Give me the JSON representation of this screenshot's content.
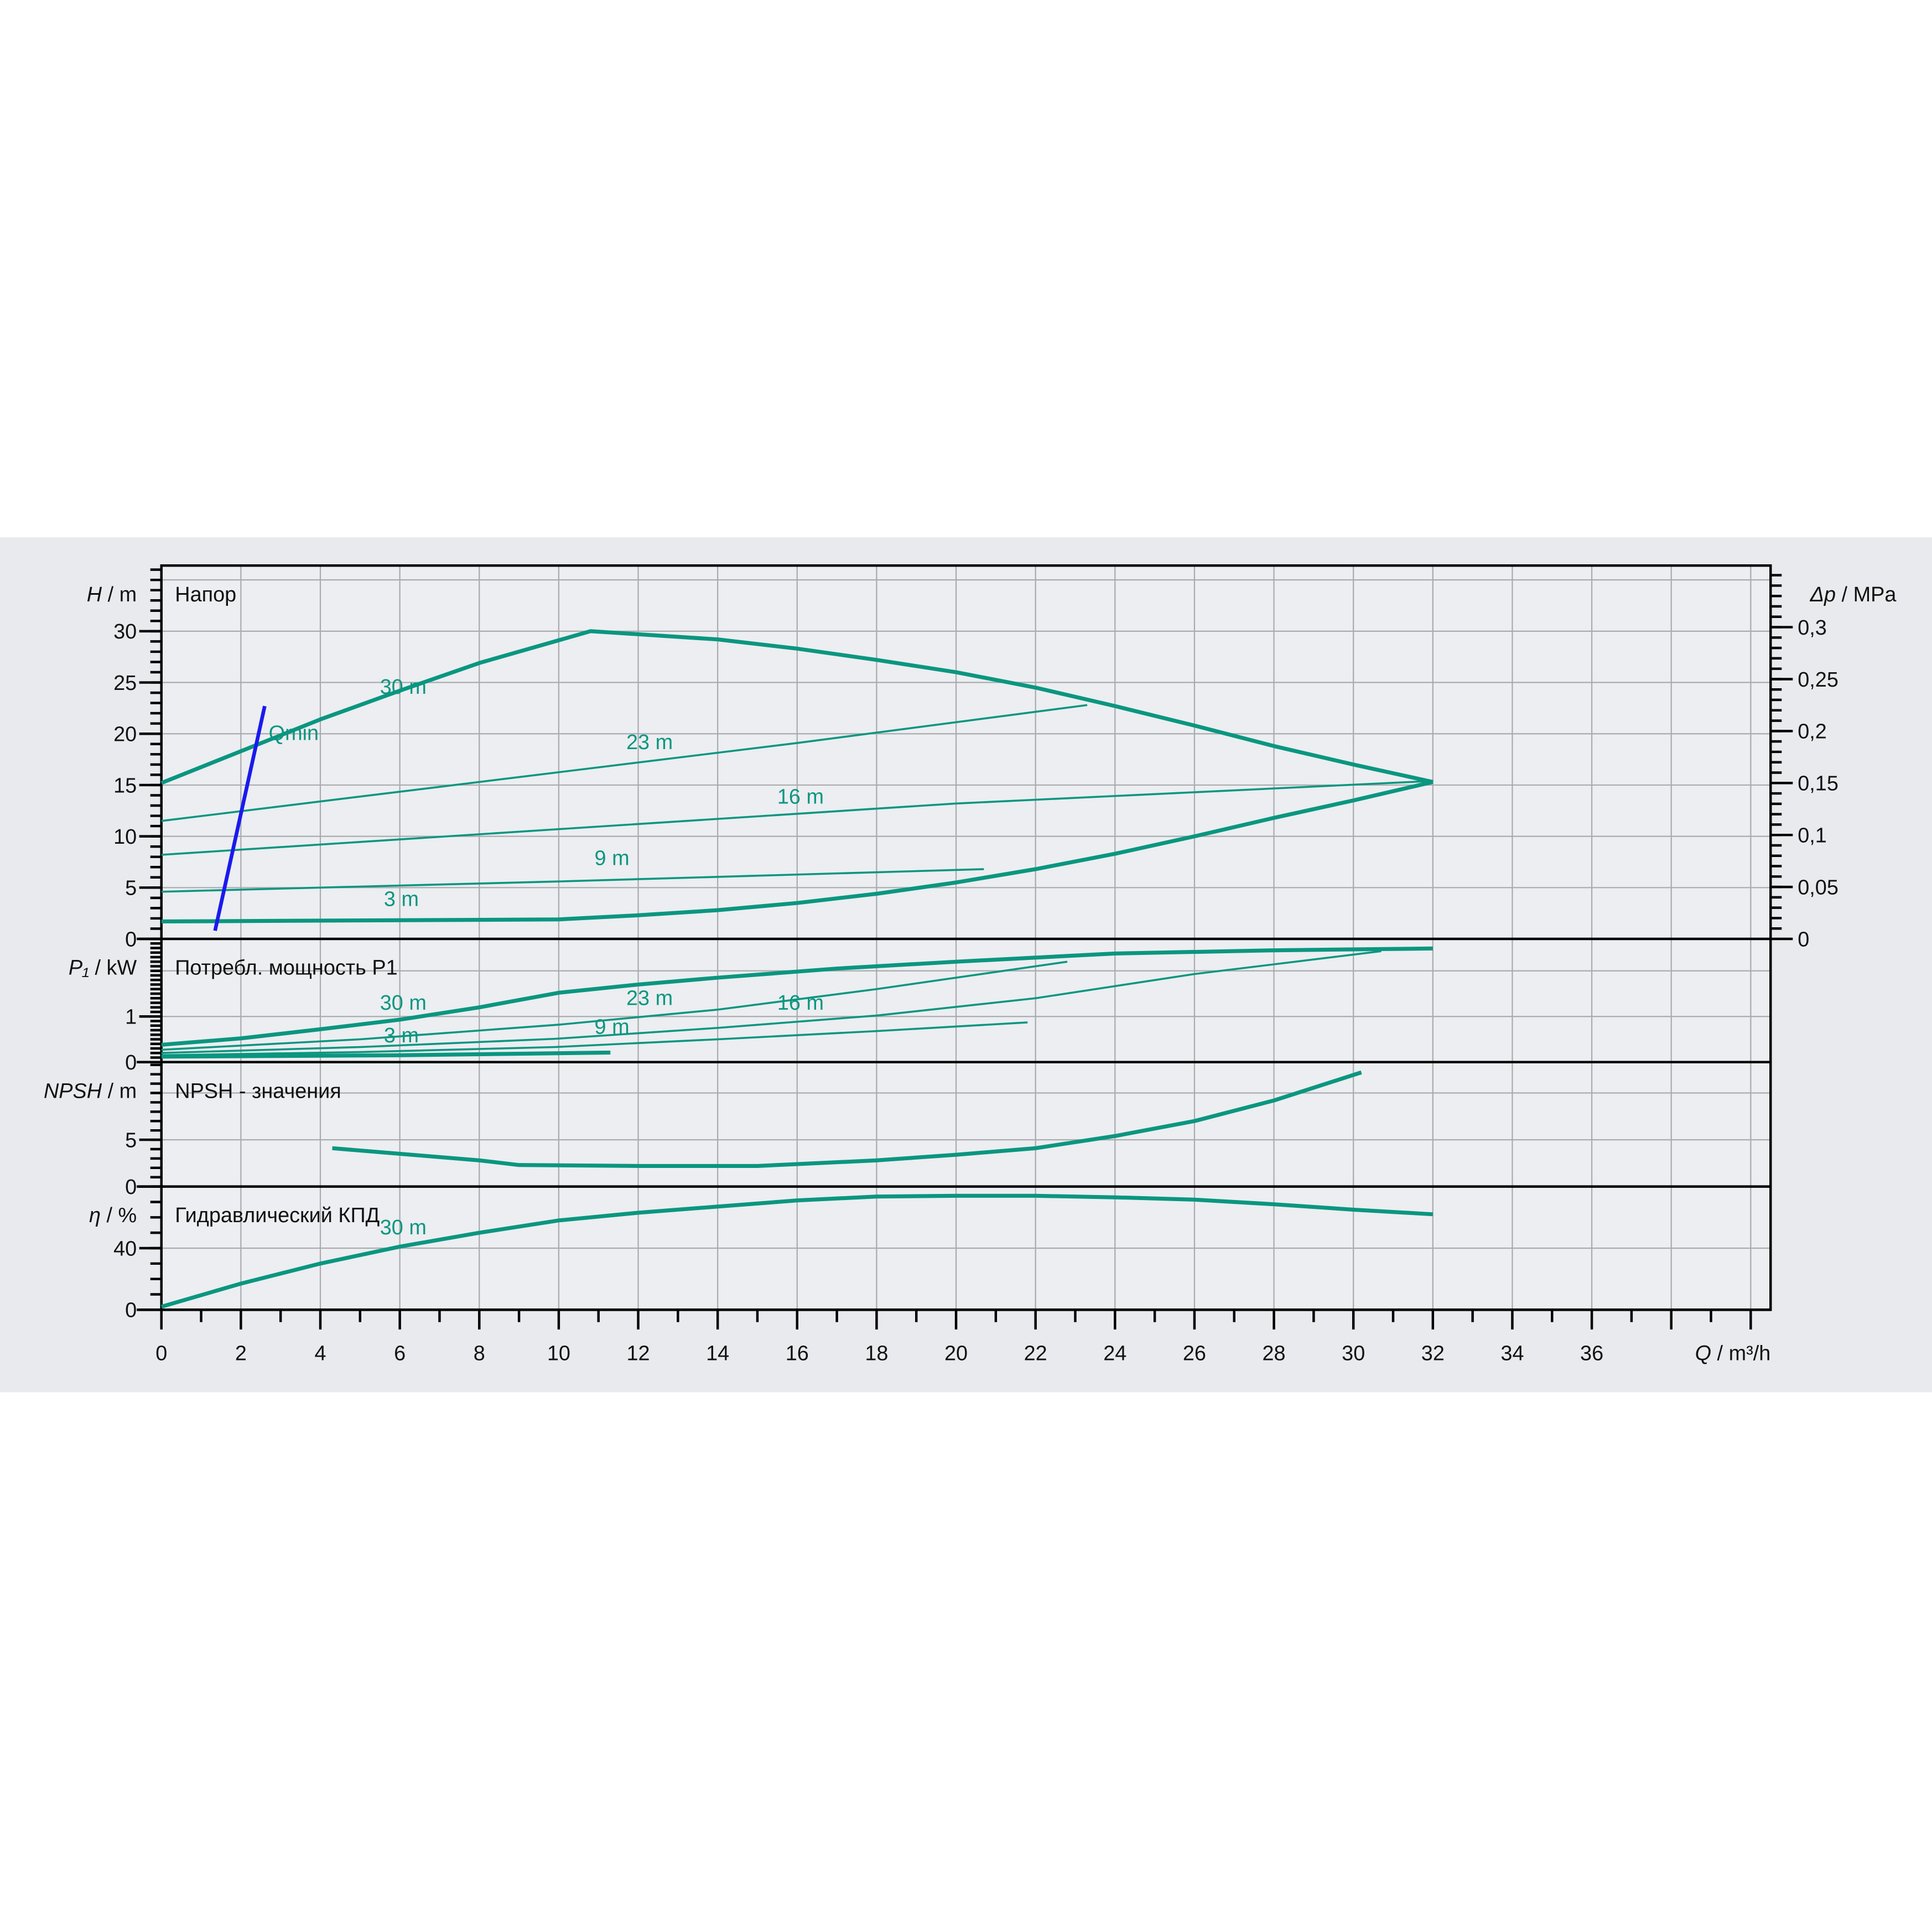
{
  "colors": {
    "band_background": "#e9eaed",
    "plot_background": "#eceef1",
    "grid": "#a9abae",
    "axis": "#000000",
    "curve": "#0a9680",
    "qmin": "#1a1aee"
  },
  "chart_data": {
    "type": "line",
    "x_axis": {
      "symbol": "Q",
      "sep": " / ",
      "unit": "m³/h",
      "range": [
        0,
        40.5
      ],
      "tick_labels": [
        "0",
        "2",
        "4",
        "6",
        "8",
        "10",
        "12",
        "14",
        "16",
        "18",
        "20",
        "22",
        "24",
        "26",
        "28",
        "30",
        "32",
        "34",
        "36"
      ],
      "grid_step": 2,
      "minor_step": 1
    },
    "panels": [
      {
        "id": "head",
        "title": "Напор",
        "y_axis": {
          "symbol": "H",
          "sep": " / ",
          "unit": "m",
          "range": [
            0,
            36.4
          ],
          "ticks": [
            0,
            5,
            10,
            15,
            20,
            25,
            30
          ],
          "tick_labels": [
            "0",
            "5",
            "10",
            "15",
            "20",
            "25",
            "30"
          ],
          "grid": [
            5,
            10,
            15,
            20,
            25,
            30,
            35
          ],
          "minor_step": 1
        },
        "right_axis": {
          "symbol": "Δp",
          "sep": " / ",
          "unit": "MPa",
          "ticks": [
            0,
            0.05,
            0.1,
            0.15,
            0.2,
            0.25,
            0.3
          ],
          "tick_labels": [
            "0",
            "0,05",
            "0,1",
            "0,15",
            "0,2",
            "0,25",
            "0,3"
          ],
          "minor_step": 0.01
        },
        "curves": [
          {
            "name": "30 m",
            "label": "30 m",
            "label_at": [
              5.5,
              23.9
            ],
            "weight": "thick",
            "points": [
              [
                0,
                15.2
              ],
              [
                2,
                18.3
              ],
              [
                4,
                21.4
              ],
              [
                6,
                24.2
              ],
              [
                8,
                26.9
              ],
              [
                10.8,
                30
              ],
              [
                14,
                29.2
              ],
              [
                16,
                28.3
              ],
              [
                18,
                27.2
              ],
              [
                20,
                26
              ],
              [
                22,
                24.5
              ],
              [
                24,
                22.7
              ],
              [
                26,
                20.8
              ],
              [
                28,
                18.8
              ],
              [
                30,
                17
              ],
              [
                32,
                15.3
              ]
            ]
          },
          {
            "name": "min",
            "label": "",
            "weight": "thick",
            "points": [
              [
                0,
                1.7
              ],
              [
                10,
                1.9
              ],
              [
                12,
                2.3
              ],
              [
                14,
                2.8
              ],
              [
                16,
                3.5
              ],
              [
                18,
                4.4
              ],
              [
                20,
                5.5
              ],
              [
                22,
                6.8
              ],
              [
                24,
                8.3
              ],
              [
                26,
                10
              ],
              [
                28,
                11.8
              ],
              [
                30,
                13.5
              ],
              [
                32,
                15.3
              ]
            ]
          },
          {
            "name": "23 m",
            "label": "23 m",
            "label_at": [
              11.7,
              18.5
            ],
            "weight": "thin",
            "points": [
              [
                0,
                11.5
              ],
              [
                8,
                15.3
              ],
              [
                16,
                19.1
              ],
              [
                23.3,
                22.8
              ]
            ]
          },
          {
            "name": "16 m",
            "label": "16 m",
            "label_at": [
              15.5,
              13.2
            ],
            "weight": "thin",
            "points": [
              [
                0,
                8.2
              ],
              [
                10,
                10.7
              ],
              [
                20,
                13.2
              ],
              [
                32,
                15.4
              ]
            ]
          },
          {
            "name": "9 m",
            "label": "9 m",
            "label_at": [
              10.9,
              7.2
            ],
            "weight": "thin",
            "points": [
              [
                0,
                4.6
              ],
              [
                10,
                5.6
              ],
              [
                20.7,
                6.8
              ]
            ]
          },
          {
            "name": "3 m",
            "label": "3 m",
            "label_at": [
              5.6,
              3.2
            ],
            "weight": "none",
            "points": []
          },
          {
            "name": "Qmin",
            "label": "Qmin",
            "label_at": [
              2.7,
              19.4
            ],
            "weight": "qmin",
            "points": [
              [
                1.35,
                0.8
              ],
              [
                2.6,
                22.7
              ]
            ]
          }
        ]
      },
      {
        "id": "power",
        "title": "Потребл. мощность P1",
        "y_axis": {
          "symbol": "P₁",
          "sep": " / ",
          "unit": "kW",
          "range": [
            0,
            2.7
          ],
          "ticks": [
            0,
            1
          ],
          "tick_labels": [
            "0",
            "1"
          ],
          "grid": [
            1,
            2
          ],
          "minor_step": 0.1
        },
        "curves": [
          {
            "name": "30 m",
            "label": "30 m",
            "label_at": [
              5.5,
              1.15
            ],
            "weight": "thick",
            "points": [
              [
                0,
                0.38
              ],
              [
                2,
                0.52
              ],
              [
                4,
                0.72
              ],
              [
                6,
                0.93
              ],
              [
                8,
                1.2
              ],
              [
                10,
                1.52
              ],
              [
                12,
                1.7
              ],
              [
                14,
                1.85
              ],
              [
                17,
                2.05
              ],
              [
                20,
                2.2
              ],
              [
                24,
                2.38
              ],
              [
                28,
                2.45
              ],
              [
                32,
                2.49
              ]
            ]
          },
          {
            "name": "23 m",
            "label": "23 m",
            "label_at": [
              11.7,
              1.25
            ],
            "weight": "thin",
            "points": [
              [
                0,
                0.27
              ],
              [
                5,
                0.5
              ],
              [
                10,
                0.82
              ],
              [
                14,
                1.15
              ],
              [
                18,
                1.6
              ],
              [
                22.8,
                2.2
              ]
            ]
          },
          {
            "name": "16 m",
            "label": "16 m",
            "label_at": [
              15.5,
              1.15
            ],
            "weight": "thin",
            "points": [
              [
                0,
                0.2
              ],
              [
                5,
                0.33
              ],
              [
                9.9,
                0.51
              ],
              [
                14,
                0.75
              ],
              [
                18,
                1.02
              ],
              [
                22,
                1.4
              ],
              [
                26,
                1.93
              ],
              [
                30.7,
                2.43
              ]
            ]
          },
          {
            "name": "9 m",
            "label": "9 m",
            "label_at": [
              10.9,
              0.62
            ],
            "weight": "thin",
            "points": [
              [
                0,
                0.15
              ],
              [
                5,
                0.22
              ],
              [
                9.9,
                0.33
              ],
              [
                14,
                0.5
              ],
              [
                18,
                0.68
              ],
              [
                21.8,
                0.87
              ]
            ]
          },
          {
            "name": "3 m",
            "label": "3 m",
            "label_at": [
              5.6,
              0.43
            ],
            "weight": "thick",
            "points": [
              [
                0,
                0.12
              ],
              [
                6,
                0.15
              ],
              [
                11.3,
                0.21
              ]
            ]
          }
        ]
      },
      {
        "id": "npsh",
        "title": "NPSH - значения",
        "y_axis": {
          "symbol": "NPSH",
          "sep": " / ",
          "unit": "m",
          "range": [
            0,
            13.3
          ],
          "ticks": [
            0,
            5
          ],
          "tick_labels": [
            "0",
            "5"
          ],
          "grid": [
            5,
            10
          ],
          "minor_step": 1
        },
        "curves": [
          {
            "name": "NPSH",
            "label": "",
            "weight": "thick",
            "points": [
              [
                4.3,
                4.1
              ],
              [
                6,
                3.5
              ],
              [
                8,
                2.8
              ],
              [
                9,
                2.3
              ],
              [
                12,
                2.2
              ],
              [
                15,
                2.2
              ],
              [
                16,
                2.4
              ],
              [
                18,
                2.8
              ],
              [
                20,
                3.4
              ],
              [
                22,
                4.1
              ],
              [
                24,
                5.4
              ],
              [
                26,
                7
              ],
              [
                28,
                9.2
              ],
              [
                30.2,
                12.2
              ]
            ]
          }
        ]
      },
      {
        "id": "efficiency",
        "title": "Гидравлический КПД",
        "y_axis": {
          "symbol": "η",
          "sep": " / ",
          "unit": "%",
          "range": [
            0,
            80
          ],
          "ticks": [
            0,
            40
          ],
          "tick_labels": [
            "0",
            "40"
          ],
          "grid": [
            40
          ],
          "minor_step": 10
        },
        "curves": [
          {
            "name": "30 m",
            "label": "30 m",
            "label_at": [
              5.5,
              49
            ],
            "weight": "thick",
            "points": [
              [
                0,
                2
              ],
              [
                2,
                17
              ],
              [
                4,
                30
              ],
              [
                6,
                41
              ],
              [
                8,
                50
              ],
              [
                10,
                58
              ],
              [
                12,
                63
              ],
              [
                14,
                67
              ],
              [
                16,
                71
              ],
              [
                18,
                73.5
              ],
              [
                20,
                74
              ],
              [
                22,
                74
              ],
              [
                24,
                73
              ],
              [
                26,
                71.5
              ],
              [
                28,
                68.5
              ],
              [
                30,
                65
              ],
              [
                32,
                62
              ]
            ]
          }
        ]
      }
    ]
  }
}
